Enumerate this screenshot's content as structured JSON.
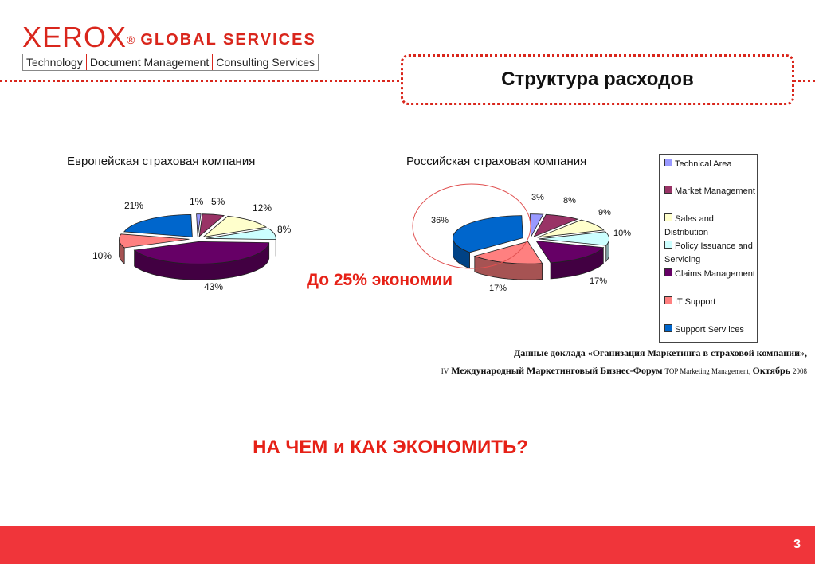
{
  "brand": {
    "logo_word": "XEROX",
    "logo_reg": "®",
    "logo_sub": "GLOBAL SERVICES",
    "tagline": [
      "Technology",
      "Document Management",
      "Consulting Services"
    ],
    "color": "#d9261c"
  },
  "slide": {
    "title": "Структура расходов",
    "page": "3"
  },
  "chart_data": [
    {
      "type": "pie",
      "title": "Европейская страховая компания",
      "categories": [
        "Technical Area",
        "Market Management",
        "Sales and Distribution",
        "Policy Issuance and Servicing",
        "Claims Management",
        "IT Support",
        "Support Services"
      ],
      "values": [
        1,
        5,
        12,
        8,
        43,
        10,
        21
      ],
      "labels": [
        "1%",
        "5%",
        "12%",
        "8%",
        "43%",
        "10%",
        "21%"
      ],
      "colors": [
        "#9999ff",
        "#993366",
        "#ffffcc",
        "#ccffff",
        "#660066",
        "#ff8080",
        "#0066cc"
      ]
    },
    {
      "type": "pie",
      "title": "Российская страховая компания",
      "categories": [
        "Technical Area",
        "Market Management",
        "Sales and Distribution",
        "Policy Issuance and Servicing",
        "Claims Management",
        "IT Support",
        "Support Services"
      ],
      "values": [
        3,
        8,
        9,
        10,
        17,
        17,
        36
      ],
      "labels": [
        "3%",
        "8%",
        "9%",
        "10%",
        "17%",
        "17%",
        "36%"
      ],
      "colors": [
        "#9999ff",
        "#993366",
        "#ffffcc",
        "#ccffff",
        "#660066",
        "#ff8080",
        "#0066cc"
      ]
    }
  ],
  "legend": {
    "items": [
      {
        "label": "Technical Area",
        "color": "#9999ff"
      },
      {
        "label": "Market Management",
        "color": "#993366"
      },
      {
        "label": "Sales and Distribution",
        "color": "#ffffcc"
      },
      {
        "label": "Policy Issuance and",
        "label2": "Servicing",
        "color": "#ccffff"
      },
      {
        "label": "Claims Management",
        "color": "#660066"
      },
      {
        "label": "IT Support",
        "color": "#ff8080"
      },
      {
        "label": "Support Serv ices",
        "color": "#0066cc"
      }
    ]
  },
  "callout": {
    "text": "До 25% экономии",
    "color": "#e62117"
  },
  "source": {
    "line1": "Данные доклада «Оганизация Маркетинга в страховой компании»,",
    "line2_prefix": "IV",
    "line2_main": " Международный Маркетинговый Бизнес-Форум ",
    "line2_small": "TOP Marketing Management, ",
    "line2_month": "Октябрь ",
    "line2_year": "2008"
  },
  "question": "НА ЧЕМ и КАК ЭКОНОМИТЬ?",
  "footer_color": "#f0353a"
}
